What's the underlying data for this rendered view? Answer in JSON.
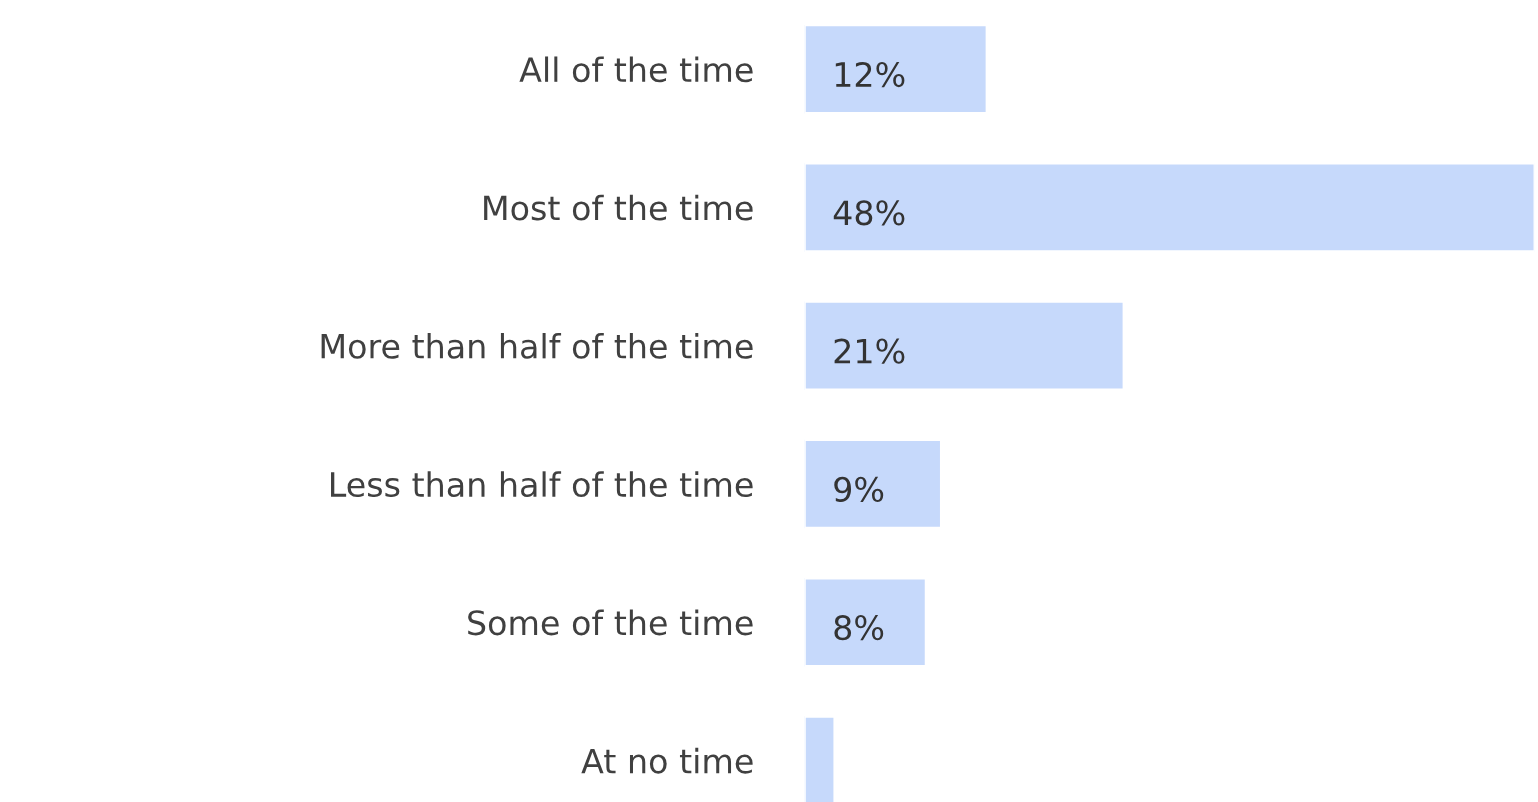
{
  "chart_data": {
    "type": "bar",
    "orientation": "horizontal",
    "categories": [
      "All of the time",
      "Most of the time",
      "More than half of the time",
      "Less than half of the time",
      "Some of the time",
      "At no time"
    ],
    "values": [
      12,
      48,
      21,
      9,
      8,
      2
    ],
    "value_labels": [
      "12%",
      "48%",
      "21%",
      "9%",
      "8%",
      null
    ],
    "color": "#c6d9fb",
    "tick_labels": "y",
    "grid": false,
    "legend": false
  }
}
